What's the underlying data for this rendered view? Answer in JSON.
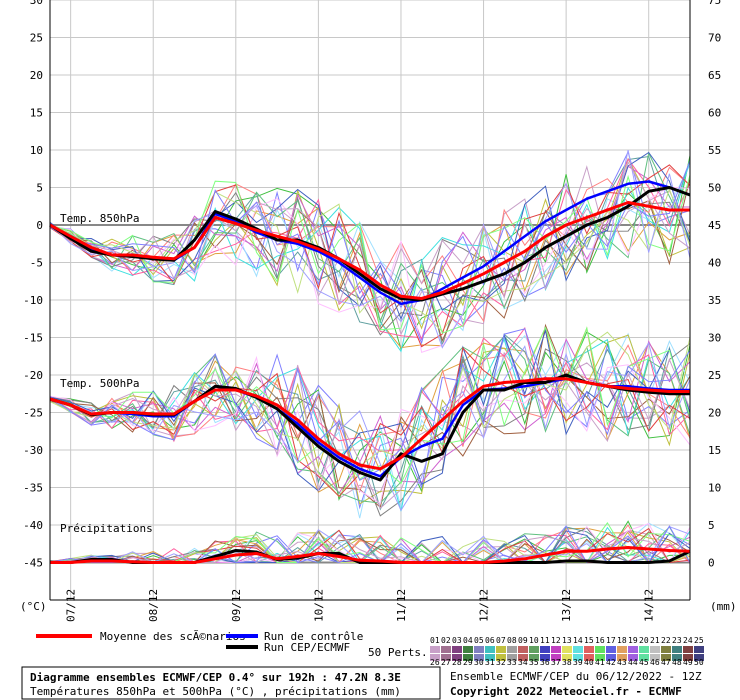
{
  "chart_data": {
    "type": "line",
    "title": "Diagramme ensembles ECMWF/CEP 0.4° sur 192h : 47.2N 8.3E",
    "subtitle": "Températures 850hPa et 500hPa (°C) , précipitations (mm)",
    "run_info": "Ensemble ECMWF/CEP du 06/12/2022 - 12Z",
    "copyright": "Copyright 2022 Meteociel.fr - ECMWF",
    "left_unit": "(°C)",
    "right_unit": "(mm)",
    "ylim_left": [
      -50,
      30
    ],
    "ylim_right": [
      -5,
      75
    ],
    "y_ticks_left": [
      30,
      25,
      20,
      15,
      10,
      5,
      0,
      -5,
      -10,
      -15,
      -20,
      -25,
      -30,
      -35,
      -40,
      -45
    ],
    "y_ticks_right": [
      75,
      70,
      65,
      60,
      55,
      50,
      45,
      40,
      35,
      30,
      25,
      20,
      15,
      10,
      5,
      0
    ],
    "x_ticks": [
      "07/12",
      "08/12",
      "09/12",
      "10/12",
      "11/12",
      "12/12",
      "13/12",
      "14/12"
    ],
    "section_labels": [
      "Temp. 850hPa",
      "Temp. 500hPa",
      "Précipitations"
    ],
    "legend": {
      "mean": "Moyenne des scÃ©narios",
      "control": "Run de contrôle",
      "oper": "Run CEP/ECMWF",
      "perts_label": "50 Perts.",
      "perts_row1": [
        "01",
        "02",
        "03",
        "04",
        "05",
        "06",
        "07",
        "08",
        "09",
        "10",
        "11",
        "12",
        "13",
        "14",
        "15",
        "16",
        "17",
        "18",
        "19",
        "20",
        "21",
        "22",
        "23",
        "24",
        "25"
      ],
      "perts_row2": [
        "26",
        "27",
        "28",
        "29",
        "30",
        "31",
        "32",
        "33",
        "34",
        "35",
        "36",
        "37",
        "38",
        "39",
        "40",
        "41",
        "42",
        "43",
        "44",
        "45",
        "46",
        "47",
        "48",
        "49",
        "50"
      ]
    },
    "x": [
      "06/12 18h",
      "07/12 00h",
      "07/12 06h",
      "07/12 12h",
      "07/12 18h",
      "08/12 00h",
      "08/12 06h",
      "08/12 12h",
      "08/12 18h",
      "09/12 00h",
      "09/12 06h",
      "09/12 12h",
      "09/12 18h",
      "10/12 00h",
      "10/12 06h",
      "10/12 12h",
      "10/12 18h",
      "11/12 00h",
      "11/12 06h",
      "11/12 12h",
      "11/12 18h",
      "12/12 00h",
      "12/12 06h",
      "12/12 12h",
      "12/12 18h",
      "13/12 00h",
      "13/12 06h",
      "13/12 12h",
      "13/12 18h",
      "14/12 00h",
      "14/12 06h",
      "14/12 12h"
    ],
    "series": [
      {
        "name": "Moyenne des scÃ©narios",
        "group": "t850",
        "color": "#ff0000",
        "values": [
          0,
          -1.5,
          -3,
          -4,
          -4,
          -4.3,
          -4.5,
          -3,
          1,
          0.2,
          -0.7,
          -1.5,
          -2.2,
          -3.2,
          -4.5,
          -6,
          -8,
          -9.5,
          -9.8,
          -9,
          -7.8,
          -6.5,
          -5,
          -3.5,
          -1.5,
          0,
          1,
          2,
          3,
          2.5,
          2,
          2
        ]
      },
      {
        "name": "Run de contrôle",
        "group": "t850",
        "color": "#0000ff",
        "values": [
          0,
          -1.8,
          -3.2,
          -4,
          -4.2,
          -4.5,
          -4.7,
          -3,
          1.5,
          0.5,
          -1,
          -2,
          -2.5,
          -3.5,
          -5,
          -7,
          -9,
          -10.5,
          -10,
          -8.5,
          -7,
          -5.5,
          -3.5,
          -1.5,
          0.5,
          2,
          3.5,
          4.5,
          5.5,
          5.8,
          5,
          4
        ]
      },
      {
        "name": "Run CEP/ECMWF",
        "group": "t850",
        "color": "#000000",
        "values": [
          0,
          -1.8,
          -3.5,
          -4,
          -4.2,
          -4.5,
          -4.7,
          -2,
          1.8,
          0.8,
          -0.5,
          -2,
          -2,
          -3,
          -4.5,
          -6.5,
          -8.5,
          -9.8,
          -10,
          -9.2,
          -8.5,
          -7.5,
          -6.5,
          -5,
          -3,
          -1.5,
          0,
          1,
          2.5,
          4.5,
          5,
          4
        ]
      },
      {
        "name": "Moyenne des scÃ©narios",
        "group": "t500",
        "color": "#ff0000",
        "values": [
          -23.2,
          -24,
          -25.2,
          -25,
          -25,
          -25.2,
          -25.2,
          -23.5,
          -22,
          -22,
          -22.8,
          -24,
          -26,
          -28.5,
          -30.5,
          -32,
          -32.5,
          -31,
          -28.5,
          -26,
          -23.5,
          -21.5,
          -21,
          -20.8,
          -20.5,
          -20.5,
          -21,
          -21.5,
          -21.8,
          -22,
          -22.2,
          -22.2
        ]
      },
      {
        "name": "Run de contrôle",
        "group": "t500",
        "color": "#0000ff",
        "values": [
          -23.2,
          -24,
          -25.3,
          -25,
          -25.2,
          -25.5,
          -25.5,
          -23.5,
          -21.5,
          -22,
          -23,
          -24.5,
          -26.5,
          -29,
          -31,
          -32.5,
          -33.5,
          -31,
          -29.5,
          -28.5,
          -24,
          -22,
          -21.8,
          -21.5,
          -21,
          -20.5,
          -21,
          -21.5,
          -21.5,
          -21.8,
          -22,
          -22
        ]
      },
      {
        "name": "Run CEP/ECMWF",
        "group": "t500",
        "color": "#000000",
        "values": [
          -23.2,
          -24,
          -25.3,
          -25,
          -25,
          -25.3,
          -25.3,
          -23.5,
          -21.5,
          -21.8,
          -23,
          -24.5,
          -27,
          -29.5,
          -31.5,
          -33,
          -34,
          -30.5,
          -31.5,
          -30.5,
          -25,
          -22,
          -22,
          -21,
          -21,
          -20,
          -21,
          -21.5,
          -22,
          -22.3,
          -22.5,
          -22.5
        ]
      },
      {
        "name": "Moyenne des scÃ©narios",
        "group": "precip",
        "color": "#ff0000",
        "values": [
          0,
          0,
          0.2,
          0.2,
          0.1,
          0,
          0,
          0,
          0.5,
          1,
          1.2,
          0.5,
          0.8,
          1.2,
          0.8,
          0.3,
          0.2,
          0,
          0,
          0,
          0,
          0,
          0.2,
          0.5,
          1,
          1.5,
          1.5,
          1.8,
          2,
          1.8,
          1.6,
          1.5
        ]
      },
      {
        "name": "Run CEP/ECMWF",
        "group": "precip",
        "color": "#000000",
        "values": [
          0,
          0,
          0.4,
          0.4,
          0,
          0,
          0,
          0,
          0.8,
          1.6,
          1.4,
          0.4,
          0.6,
          1.2,
          1.2,
          0,
          0,
          0,
          0,
          0,
          0,
          0,
          0,
          0,
          0,
          0.2,
          0.2,
          0,
          0,
          0,
          0.2,
          1.5
        ]
      }
    ]
  }
}
